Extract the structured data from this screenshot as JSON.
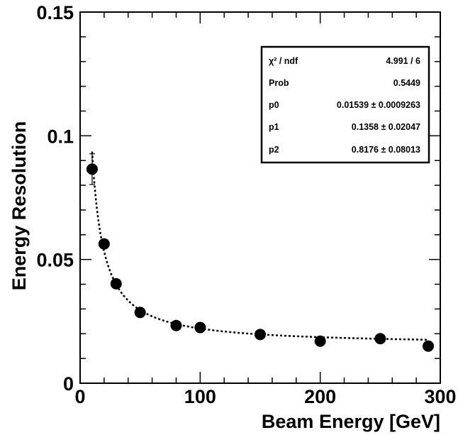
{
  "chart_data": {
    "type": "scatter",
    "title": "",
    "xlabel": "Beam Energy [GeV]",
    "ylabel": "Energy Resolution",
    "xlim": [
      0,
      300
    ],
    "ylim": [
      0,
      0.15
    ],
    "x_major_ticks": [
      0,
      100,
      200,
      300
    ],
    "x_tick_labels": [
      "0",
      "100",
      "200",
      "300"
    ],
    "y_major_ticks": [
      0,
      0.05,
      0.1,
      0.15
    ],
    "y_tick_labels": [
      "0",
      "0.05",
      "0.1",
      "0.15"
    ],
    "grid": false,
    "series": [
      {
        "marker": "filled-circle",
        "x": [
          10,
          20,
          30,
          50,
          80,
          100,
          150,
          200,
          250,
          290
        ],
        "y": [
          0.0865,
          0.0563,
          0.0402,
          0.0286,
          0.0233,
          0.0225,
          0.0197,
          0.017,
          0.018,
          0.015
        ],
        "yerr": [
          0.0062,
          0.0015,
          0.001,
          0.0006,
          0.0005,
          0.0005,
          0.0004,
          0.0004,
          0.0004,
          0.0004
        ]
      }
    ],
    "fit": {
      "style": "dotted",
      "color": "#000000",
      "x_range": [
        10,
        290
      ],
      "p0": 0.01539,
      "p1": 0.1358,
      "p2": 0.8176
    },
    "stats_box": {
      "placement": "top-right",
      "rows": [
        {
          "label": "χ² / ndf",
          "value": "4.991 / 6"
        },
        {
          "label": "Prob",
          "value": "0.5449"
        },
        {
          "label": "p0",
          "value": "0.01539 ± 0.0009263"
        },
        {
          "label": "p1",
          "value": "0.1358 ± 0.02047"
        },
        {
          "label": "p2",
          "value": "0.8176 ± 0.08013"
        }
      ]
    }
  }
}
